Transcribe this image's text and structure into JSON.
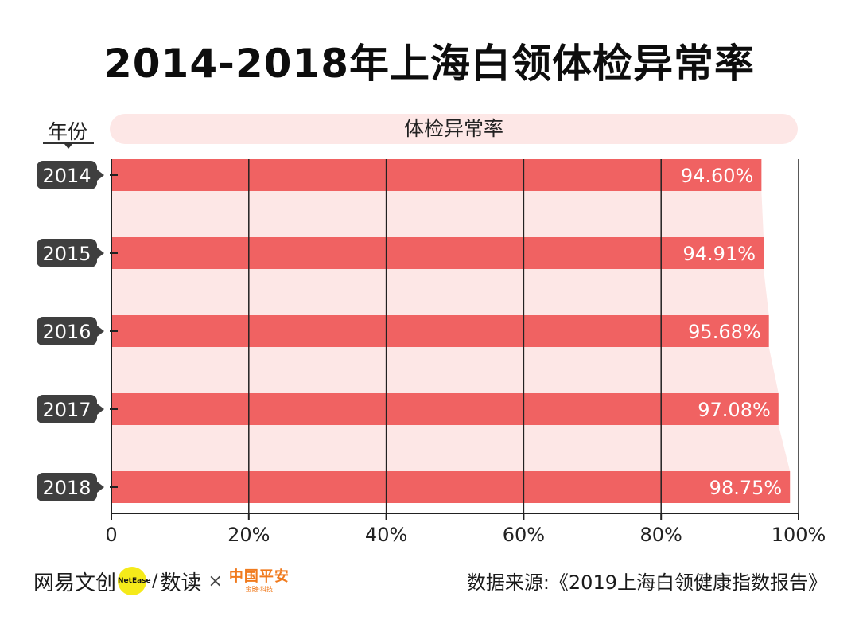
{
  "title": "2014-2018年上海白领体检异常率",
  "y_header": "年份",
  "header_label": "体检异常率",
  "chart_data": {
    "type": "bar",
    "orientation": "horizontal",
    "title": "2014-2018年上海白领体检异常率",
    "categories": [
      "2014",
      "2015",
      "2016",
      "2017",
      "2018"
    ],
    "series": [
      {
        "name": "体检异常率",
        "values": [
          94.6,
          94.91,
          95.68,
          97.08,
          98.75
        ]
      }
    ],
    "value_labels": [
      "94.60%",
      "94.91%",
      "95.68%",
      "97.08%",
      "98.75%"
    ],
    "xlim": [
      0,
      100
    ],
    "x_ticks": [
      0,
      20,
      40,
      60,
      80,
      100
    ],
    "x_tick_labels": [
      "0",
      "20%",
      "40%",
      "60%",
      "80%",
      "100%"
    ],
    "grid": true,
    "bar_color": "#f06262",
    "band_color": "#fde7e6",
    "label_bg_color": "#3f3f3f"
  },
  "footer": {
    "brand1": "网易文创",
    "brand1_badge": "NetEase",
    "brand2": "数读",
    "times": "×",
    "brand3": "中国平安",
    "brand3_sub": "金融·科技",
    "source": "数据来源:《2019上海白领健康指数报告》"
  }
}
